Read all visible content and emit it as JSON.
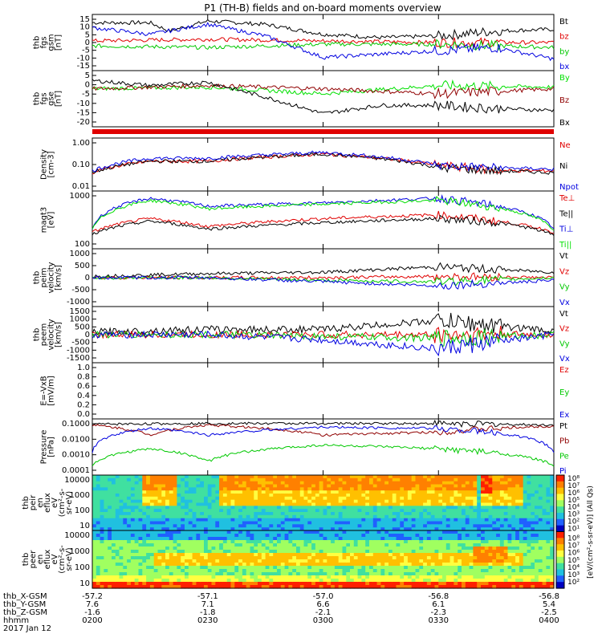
{
  "title": "P1 (TH-B) fields and on-board moments overview",
  "colors": {
    "black": "#000000",
    "red": "#e00000",
    "green": "#00c800",
    "blue": "#0000e0",
    "darkred": "#900000",
    "lime": "#00e000"
  },
  "panels": [
    {
      "id": "fgs_gsm",
      "ylabel": [
        "thb",
        "fgs",
        "gsm",
        "[nT]"
      ],
      "ticks": [
        "15",
        "10",
        "5",
        "0",
        "-5",
        "-10",
        "-15"
      ],
      "legend": [
        {
          "label": "Bt",
          "color": "black"
        },
        {
          "label": "bz",
          "color": "red"
        },
        {
          "label": "by",
          "color": "green"
        },
        {
          "label": "bx",
          "color": "blue"
        }
      ]
    },
    {
      "id": "fgs_gse",
      "ylabel": [
        "thb",
        "fgs",
        "gse",
        "[nT]"
      ],
      "ticks": [
        "5",
        "0",
        "-5",
        "-10",
        "-15",
        "-20"
      ],
      "legend": [
        {
          "label": "By",
          "color": "lime"
        },
        {
          "label": "Bz",
          "color": "darkred"
        },
        {
          "label": "Bx",
          "color": "black"
        }
      ]
    },
    {
      "id": "density",
      "ylabel": [
        "Density",
        "[cm-3]"
      ],
      "ticks": [
        "1.00",
        "0.10",
        "0.01"
      ],
      "legend": [
        {
          "label": "Ne",
          "color": "red"
        },
        {
          "label": "Ni",
          "color": "black"
        },
        {
          "label": "Npot",
          "color": "blue"
        }
      ]
    },
    {
      "id": "temp",
      "ylabel": [
        "magt3",
        "[eV]"
      ],
      "ticks": [
        "1000",
        "100"
      ],
      "legend": [
        {
          "label": "Te⊥",
          "color": "red"
        },
        {
          "label": "Te||",
          "color": "black"
        },
        {
          "label": "Ti⊥",
          "color": "blue"
        },
        {
          "label": "Ti||",
          "color": "lime"
        }
      ]
    },
    {
      "id": "vi",
      "ylabel": [
        "thb",
        "peim",
        "velocity",
        "[km/s]"
      ],
      "ticks": [
        "1000",
        "500",
        "0",
        "-500",
        "-1000"
      ],
      "legend": [
        {
          "label": "Vt",
          "color": "black"
        },
        {
          "label": "Vz",
          "color": "red"
        },
        {
          "label": "Vy",
          "color": "green"
        },
        {
          "label": "Vx",
          "color": "blue"
        }
      ]
    },
    {
      "id": "ve",
      "ylabel": [
        "thb",
        "peem",
        "velocity",
        "[km/s]"
      ],
      "ticks": [
        "1500",
        "1000",
        "500",
        "0",
        "-500",
        "-1000",
        "-1500"
      ],
      "legend": [
        {
          "label": "Vt",
          "color": "black"
        },
        {
          "label": "Vz",
          "color": "red"
        },
        {
          "label": "Vy",
          "color": "green"
        },
        {
          "label": "Vx",
          "color": "blue"
        }
      ]
    },
    {
      "id": "efield",
      "ylabel": [
        "E=-VxB",
        "[mV/m]"
      ],
      "ticks": [
        "1.0",
        "0.8",
        "0.6",
        "0.4",
        "0.2",
        "0.0"
      ],
      "legend": [
        {
          "label": "Ez",
          "color": "red"
        },
        {
          "label": "Ey",
          "color": "green"
        },
        {
          "label": "Ex",
          "color": "blue"
        }
      ]
    },
    {
      "id": "pressure",
      "ylabel": [
        "Pressure",
        "[nPa]"
      ],
      "ticks": [
        "0.1000",
        "0.0100",
        "0.0010",
        "0.0001"
      ],
      "legend": [
        {
          "label": "Pt",
          "color": "black"
        },
        {
          "label": "Pb",
          "color": "darkred"
        },
        {
          "label": "Pe",
          "color": "green"
        },
        {
          "label": "Pi",
          "color": "blue"
        }
      ]
    },
    {
      "id": "peir",
      "ylabel": [
        "thb",
        "peir",
        "en",
        "eflux",
        "eV",
        "(cm²-s-",
        "sr-eV)"
      ],
      "ticks": [
        "10000",
        "1000",
        "100",
        "10"
      ],
      "legend": []
    },
    {
      "id": "peer",
      "ylabel": [
        "thb",
        "peer",
        "en",
        "eflux",
        "eV",
        "(cm²-s-",
        "sr-eV)"
      ],
      "ticks": [
        "10000",
        "1000",
        "100",
        "10"
      ],
      "legend": []
    }
  ],
  "colorbar": {
    "ticks_top": [
      "10⁸",
      "10⁷",
      "10⁶",
      "10⁵",
      "10⁴",
      "10³",
      "10²",
      "10¹"
    ],
    "ticks_bottom": [
      "10⁸",
      "10⁷",
      "10⁶",
      "10⁵",
      "10⁴",
      "10³",
      "10²"
    ],
    "label": "[eV/(cm²-s-sr-eV)] (All Qs)"
  },
  "xaxis": {
    "row_labels": [
      "thb_X-GSM",
      "thb_Y-GSM",
      "thb_Z-GSM",
      "hhmm",
      "2017 Jan 12"
    ],
    "columns": [
      {
        "x": "-57.2",
        "y": "7.6",
        "z": "-1.6",
        "t": "0200"
      },
      {
        "x": "-57.1",
        "y": "7.1",
        "z": "-1.8",
        "t": "0230"
      },
      {
        "x": "-57.0",
        "y": "6.6",
        "z": "-2.1",
        "t": "0300"
      },
      {
        "x": "-56.8",
        "y": "6.1",
        "z": "-2.3",
        "t": "0330"
      },
      {
        "x": "-56.8",
        "y": "5.4",
        "z": "-2.5",
        "t": "0400"
      }
    ]
  },
  "chart_data": {
    "type": "line",
    "title": "P1 (TH-B) fields and on-board moments overview",
    "x_unit": "hhmm",
    "x_ticks": [
      "0200",
      "0230",
      "0300",
      "0330",
      "0400"
    ],
    "panels": [
      {
        "name": "fgs_gsm",
        "series": [
          {
            "name": "Bt",
            "t": [
              "0200",
              "0215",
              "0220",
              "0230",
              "0245",
              "0300",
              "0315",
              "0330",
              "0345",
              "0400"
            ],
            "values": [
              13,
              13,
              8,
              14,
              12,
              6,
              4,
              5,
              8,
              9
            ]
          },
          {
            "name": "bz",
            "t": [
              "0200",
              "0230",
              "0300",
              "0330",
              "0400"
            ],
            "values": [
              2,
              3,
              2,
              1,
              1
            ]
          },
          {
            "name": "by",
            "t": [
              "0200",
              "0230",
              "0300",
              "0330",
              "0400"
            ],
            "values": [
              -1,
              -2,
              0,
              0,
              -2
            ]
          },
          {
            "name": "bx",
            "t": [
              "0200",
              "0215",
              "0230",
              "0245",
              "0300",
              "0330",
              "0345",
              "0400"
            ],
            "values": [
              10,
              6,
              12,
              5,
              -8,
              -4,
              -2,
              -9
            ]
          }
        ]
      },
      {
        "name": "fgs_gse",
        "series": [
          {
            "name": "By",
            "t": [
              "0200",
              "0230",
              "0300",
              "0330",
              "0400"
            ],
            "values": [
              0,
              1,
              -3,
              2,
              1
            ]
          },
          {
            "name": "Bz",
            "t": [
              "0200",
              "0230",
              "0300",
              "0330",
              "0400"
            ],
            "values": [
              0,
              2,
              0,
              -3,
              0
            ]
          },
          {
            "name": "Bx",
            "t": [
              "0200",
              "0215",
              "0230",
              "0245",
              "0300",
              "0315",
              "0330",
              "0345",
              "0400"
            ],
            "values": [
              5,
              2,
              4,
              -5,
              -15,
              -10,
              -10,
              -12,
              -13
            ]
          }
        ]
      },
      {
        "name": "density",
        "series": [
          {
            "name": "Ne",
            "t": [
              "0200",
              "0215",
              "0230",
              "0300",
              "0330",
              "0345",
              "0400"
            ],
            "values": [
              0.05,
              0.15,
              0.15,
              0.3,
              0.1,
              0.06,
              0.06
            ]
          },
          {
            "name": "Ni",
            "t": [
              "0200",
              "0215",
              "0230",
              "0300",
              "0330",
              "0345",
              "0400"
            ],
            "values": [
              0.05,
              0.15,
              0.15,
              0.3,
              0.08,
              0.06,
              0.05
            ]
          },
          {
            "name": "Npot",
            "t": [
              "0200",
              "0215",
              "0230",
              "0300",
              "0330",
              "0345",
              "0400"
            ],
            "values": [
              0.06,
              0.2,
              0.2,
              0.35,
              0.1,
              0.08,
              0.07
            ]
          }
        ]
      },
      {
        "name": "temp",
        "series": [
          {
            "name": "Te⊥",
            "t": [
              "0200",
              "0215",
              "0230",
              "0300",
              "0330",
              "0345",
              "0400"
            ],
            "values": [
              150,
              500,
              250,
              500,
              700,
              400,
              150
            ]
          },
          {
            "name": "Te||",
            "t": [
              "0200",
              "0215",
              "0230",
              "0300",
              "0330",
              "0345",
              "0400"
            ],
            "values": [
              120,
              400,
              200,
              350,
              500,
              350,
              120
            ]
          },
          {
            "name": "Ti⊥",
            "t": [
              "0200",
              "0215",
              "0230",
              "0300",
              "0330",
              "0345",
              "0400"
            ],
            "values": [
              200,
              3000,
              1500,
              2000,
              3000,
              1500,
              200
            ]
          },
          {
            "name": "Ti||",
            "t": [
              "0200",
              "0215",
              "0230",
              "0300",
              "0330",
              "0345",
              "0400"
            ],
            "values": [
              180,
              2500,
              1200,
              1800,
              2500,
              1300,
              180
            ]
          }
        ]
      },
      {
        "name": "vi",
        "series": [
          {
            "name": "Vt",
            "t": [
              "0200",
              "0230",
              "0300",
              "0330",
              "0400"
            ],
            "values": [
              50,
              150,
              200,
              400,
              200
            ]
          },
          {
            "name": "Vz",
            "t": [
              "0200",
              "0230",
              "0300",
              "0330",
              "0400"
            ],
            "values": [
              0,
              0,
              0,
              50,
              0
            ]
          },
          {
            "name": "Vy",
            "t": [
              "0200",
              "0230",
              "0300",
              "0330",
              "0400"
            ],
            "values": [
              0,
              0,
              -100,
              -150,
              0
            ]
          },
          {
            "name": "Vx",
            "t": [
              "0200",
              "0230",
              "0300",
              "0330",
              "0400"
            ],
            "values": [
              0,
              0,
              -150,
              -300,
              -100
            ]
          }
        ]
      },
      {
        "name": "ve",
        "series": [
          {
            "name": "Vt",
            "t": [
              "0200",
              "0230",
              "0300",
              "0330",
              "0400"
            ],
            "values": [
              150,
              300,
              300,
              800,
              200
            ]
          },
          {
            "name": "Vz",
            "t": [
              "0200",
              "0230",
              "0300",
              "0330",
              "0400"
            ],
            "values": [
              0,
              0,
              0,
              0,
              0
            ]
          },
          {
            "name": "Vy",
            "t": [
              "0200",
              "0230",
              "0300",
              "0330",
              "0400"
            ],
            "values": [
              0,
              0,
              -100,
              -200,
              0
            ]
          },
          {
            "name": "Vx",
            "t": [
              "0200",
              "0230",
              "0300",
              "0330",
              "0400"
            ],
            "values": [
              0,
              0,
              -300,
              -800,
              0
            ]
          }
        ]
      },
      {
        "name": "pressure",
        "series": [
          {
            "name": "Pt",
            "t": [
              "0200",
              "0230",
              "0300",
              "0330",
              "0400"
            ],
            "values": [
              0.09,
              0.1,
              0.1,
              0.1,
              0.08
            ]
          },
          {
            "name": "Pb",
            "t": [
              "0200",
              "0215",
              "0230",
              "0300",
              "0330",
              "0400"
            ],
            "values": [
              0.08,
              0.02,
              0.08,
              0.02,
              0.03,
              0.07
            ]
          },
          {
            "name": "Pe",
            "t": [
              "0200",
              "0215",
              "0230",
              "0300",
              "0330",
              "0400"
            ],
            "values": [
              0.0003,
              0.003,
              0.0005,
              0.005,
              0.003,
              0.0003
            ]
          },
          {
            "name": "Pi",
            "t": [
              "0200",
              "0215",
              "0230",
              "0300",
              "0330",
              "0400"
            ],
            "values": [
              0.002,
              0.05,
              0.02,
              0.06,
              0.05,
              0.002
            ]
          }
        ]
      }
    ]
  }
}
